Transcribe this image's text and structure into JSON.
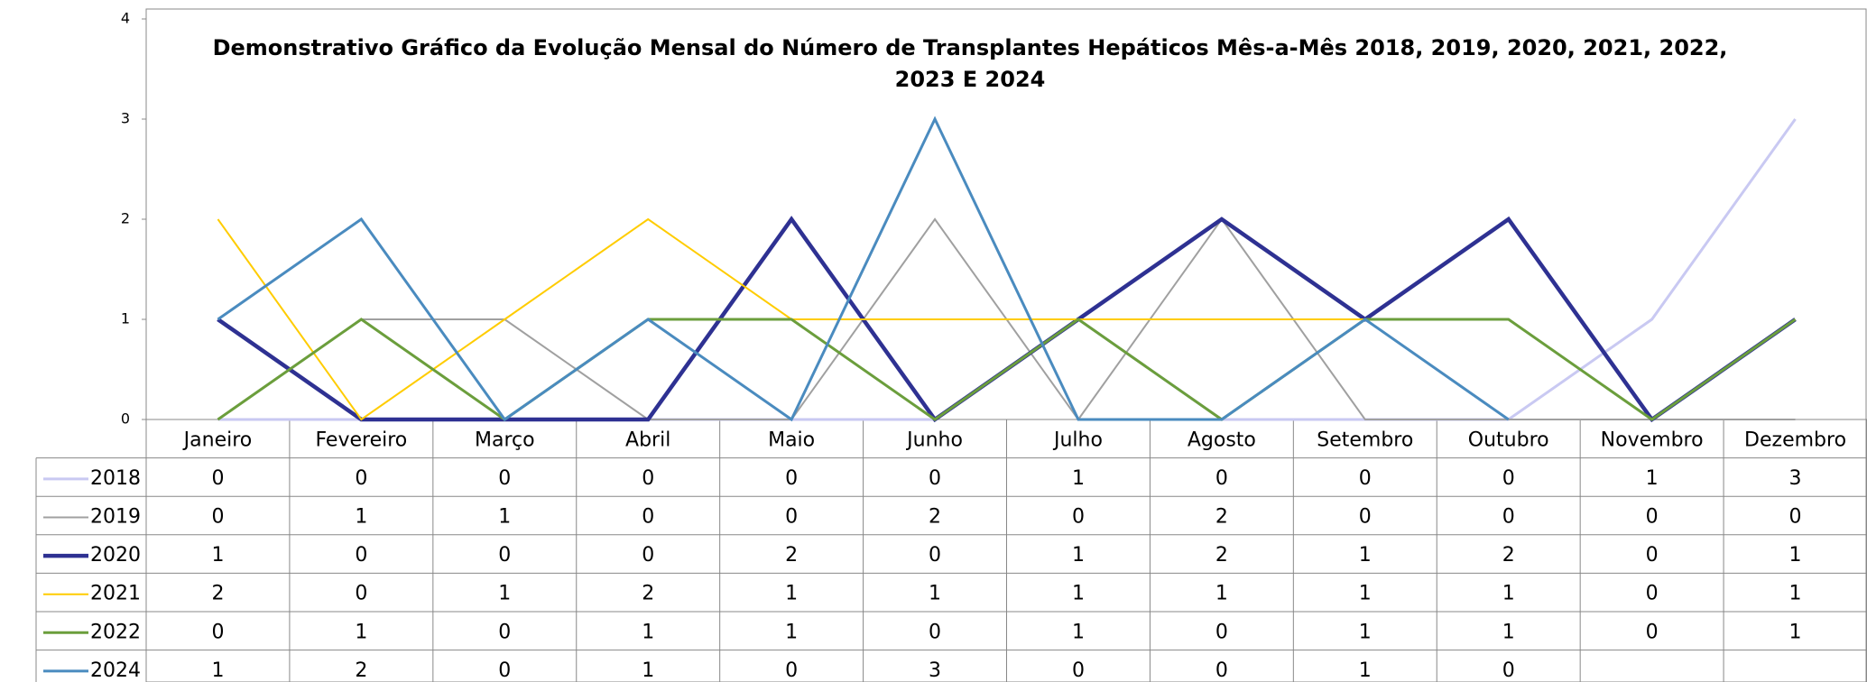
{
  "chart_data": {
    "type": "line",
    "title": "Demonstrativo Gráfico da Evolução Mensal do Número de Transplantes Hepáticos Mês-a-Mês 2018, 2019, 2020, 2021, 2022, 2023 E 2024",
    "categories": [
      "Janeiro",
      "Fevereiro",
      "Março",
      "Abril",
      "Maio",
      "Junho",
      "Julho",
      "Agosto",
      "Setembro",
      "Outubro",
      "Novembro",
      "Dezembro"
    ],
    "series": [
      {
        "name": "2018",
        "color": "#c9c9f2",
        "line_width": 3,
        "values": [
          0,
          0,
          0,
          0,
          0,
          0,
          1,
          0,
          0,
          0,
          1,
          3
        ]
      },
      {
        "name": "2019",
        "color": "#a0a0a0",
        "line_width": 2,
        "values": [
          0,
          1,
          1,
          0,
          0,
          2,
          0,
          2,
          0,
          0,
          0,
          0
        ]
      },
      {
        "name": "2020",
        "color": "#2e3192",
        "line_width": 4.5,
        "values": [
          1,
          0,
          0,
          0,
          2,
          0,
          1,
          2,
          1,
          2,
          0,
          1
        ]
      },
      {
        "name": "2021",
        "color": "#ffcc00",
        "line_width": 2,
        "values": [
          2,
          0,
          1,
          2,
          1,
          1,
          1,
          1,
          1,
          1,
          0,
          1
        ]
      },
      {
        "name": "2022",
        "color": "#6b9e3c",
        "line_width": 3,
        "values": [
          0,
          1,
          0,
          1,
          1,
          0,
          1,
          0,
          1,
          1,
          0,
          1
        ]
      },
      {
        "name": "2024",
        "color": "#4a8bbf",
        "line_width": 3,
        "values": [
          1,
          2,
          0,
          1,
          0,
          3,
          0,
          0,
          1,
          0,
          null,
          null
        ]
      }
    ],
    "ylim": [
      0,
      4
    ],
    "yticks": [
      0,
      1,
      2,
      3,
      4
    ],
    "grid": false
  }
}
